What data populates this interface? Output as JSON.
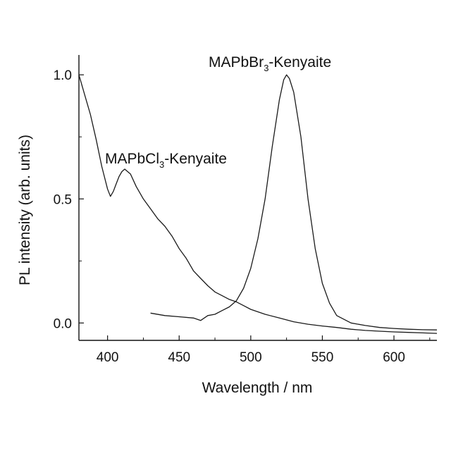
{
  "chart_data": {
    "type": "line",
    "title": "",
    "xlabel": "Wavelength / nm",
    "ylabel": "PL intensity (arb. units)",
    "xlim": [
      380,
      630
    ],
    "ylim": [
      -0.07,
      1.08
    ],
    "xticks": [
      400,
      450,
      500,
      550,
      600
    ],
    "yticks": [
      0.0,
      0.5,
      1.0
    ],
    "xtick_labels": [
      "400",
      "450",
      "500",
      "550",
      "600"
    ],
    "ytick_labels": [
      "0.0",
      "0.5",
      "1.0"
    ],
    "grid": false,
    "legend": "none",
    "line_color": "#1a1a1a",
    "annotations": [
      {
        "main": "MAPbCl",
        "sub": "3",
        "tail": "-Kenyaite"
      },
      {
        "main": "MAPbBr",
        "sub": "3",
        "tail": "-Kenyaite"
      }
    ],
    "series": [
      {
        "x": [
          380,
          384,
          388,
          392,
          396,
          400,
          402,
          404,
          406,
          408,
          410,
          412,
          414,
          416,
          420,
          425,
          430,
          435,
          440,
          445,
          450,
          455,
          460,
          465,
          470,
          475,
          480,
          485,
          490,
          495,
          500,
          505,
          510,
          520,
          530,
          540,
          550,
          560,
          570,
          580,
          590,
          600,
          610,
          620,
          630
        ],
        "y": [
          1.0,
          0.92,
          0.84,
          0.74,
          0.63,
          0.54,
          0.51,
          0.53,
          0.56,
          0.59,
          0.61,
          0.62,
          0.61,
          0.6,
          0.55,
          0.5,
          0.46,
          0.42,
          0.39,
          0.35,
          0.3,
          0.26,
          0.21,
          0.18,
          0.15,
          0.125,
          0.11,
          0.095,
          0.085,
          0.07,
          0.055,
          0.045,
          0.035,
          0.02,
          0.005,
          -0.005,
          -0.012,
          -0.018,
          -0.025,
          -0.03,
          -0.033,
          -0.036,
          -0.038,
          -0.04,
          -0.042
        ]
      },
      {
        "x": [
          430,
          440,
          450,
          460,
          465,
          470,
          475,
          480,
          485,
          490,
          495,
          500,
          505,
          510,
          515,
          520,
          523,
          525,
          527,
          530,
          535,
          540,
          545,
          550,
          555,
          560,
          570,
          580,
          590,
          600,
          610,
          620,
          630
        ],
        "y": [
          0.04,
          0.03,
          0.025,
          0.02,
          0.01,
          0.03,
          0.035,
          0.05,
          0.065,
          0.09,
          0.14,
          0.22,
          0.34,
          0.5,
          0.71,
          0.9,
          0.98,
          1.0,
          0.985,
          0.93,
          0.75,
          0.5,
          0.3,
          0.16,
          0.08,
          0.03,
          0.0,
          -0.01,
          -0.018,
          -0.022,
          -0.025,
          -0.027,
          -0.028
        ]
      }
    ]
  }
}
